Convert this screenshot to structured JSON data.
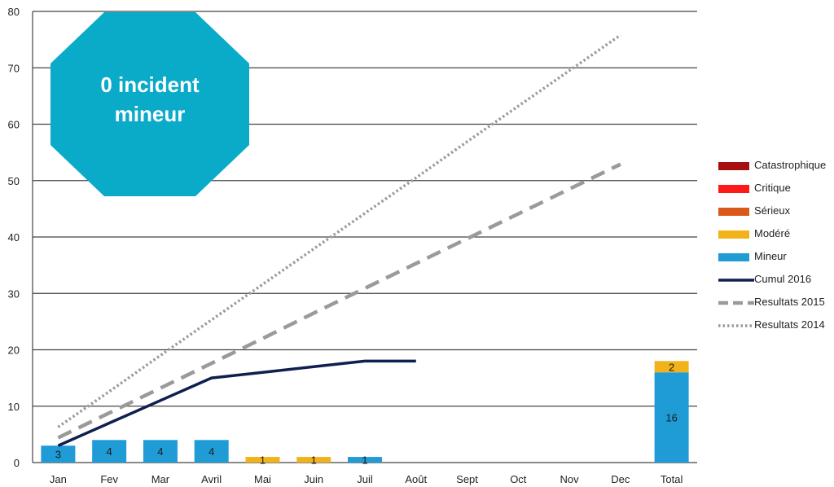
{
  "chart_data": {
    "type": "bar",
    "categories": [
      "Jan",
      "Fev",
      "Mar",
      "Avril",
      "Mai",
      "Juin",
      "Juil",
      "Août",
      "Sept",
      "Oct",
      "Nov",
      "Dec",
      "Total"
    ],
    "ylim": [
      0,
      80
    ],
    "yticks": [
      0,
      10,
      20,
      30,
      40,
      50,
      60,
      70,
      80
    ],
    "grid": true,
    "legend_position": "right",
    "stacked_series": [
      {
        "name": "Catastrophique",
        "color": "#a50f0f",
        "values": [
          0,
          0,
          0,
          0,
          0,
          0,
          0,
          0,
          0,
          0,
          0,
          0,
          0
        ]
      },
      {
        "name": "Critique",
        "color": "#ff1a1a",
        "values": [
          0,
          0,
          0,
          0,
          0,
          0,
          0,
          0,
          0,
          0,
          0,
          0,
          0
        ]
      },
      {
        "name": "Sérieux",
        "color": "#d9581a",
        "values": [
          0,
          0,
          0,
          0,
          0,
          0,
          0,
          0,
          0,
          0,
          0,
          0,
          0
        ]
      },
      {
        "name": "Modéré",
        "color": "#f2b21a",
        "values": [
          0,
          0,
          0,
          0,
          1,
          1,
          0,
          0,
          0,
          0,
          0,
          0,
          2
        ]
      },
      {
        "name": "Mineur",
        "color": "#1f9bd6",
        "values": [
          3,
          4,
          4,
          4,
          0,
          0,
          1,
          0,
          0,
          0,
          0,
          0,
          16
        ]
      }
    ],
    "stack_order": [
      "Mineur",
      "Modéré",
      "Sérieux",
      "Critique",
      "Catastrophique"
    ],
    "line_series": [
      {
        "name": "Cumul 2016",
        "color": "#0f1f4f",
        "style": "solid",
        "values": [
          3,
          7,
          11,
          15,
          16,
          17,
          18,
          18
        ]
      },
      {
        "name": "Resultats 2015",
        "color": "#9a9a9a",
        "style": "dashed",
        "values": [
          4.4,
          8.8,
          13.2,
          17.6,
          22,
          26.5,
          30.9,
          35.3,
          39.7,
          44.1,
          48.5,
          52.9
        ]
      },
      {
        "name": "Resultats 2014",
        "color": "#9a9a9a",
        "style": "dotted",
        "values": [
          6.3,
          12.6,
          19,
          25.3,
          31.6,
          37.9,
          44.2,
          50.5,
          56.9,
          63.2,
          69.5,
          75.8
        ]
      }
    ]
  },
  "badge": {
    "line1": "0 incident",
    "line2": "mineur",
    "color": "#0aaac9"
  }
}
